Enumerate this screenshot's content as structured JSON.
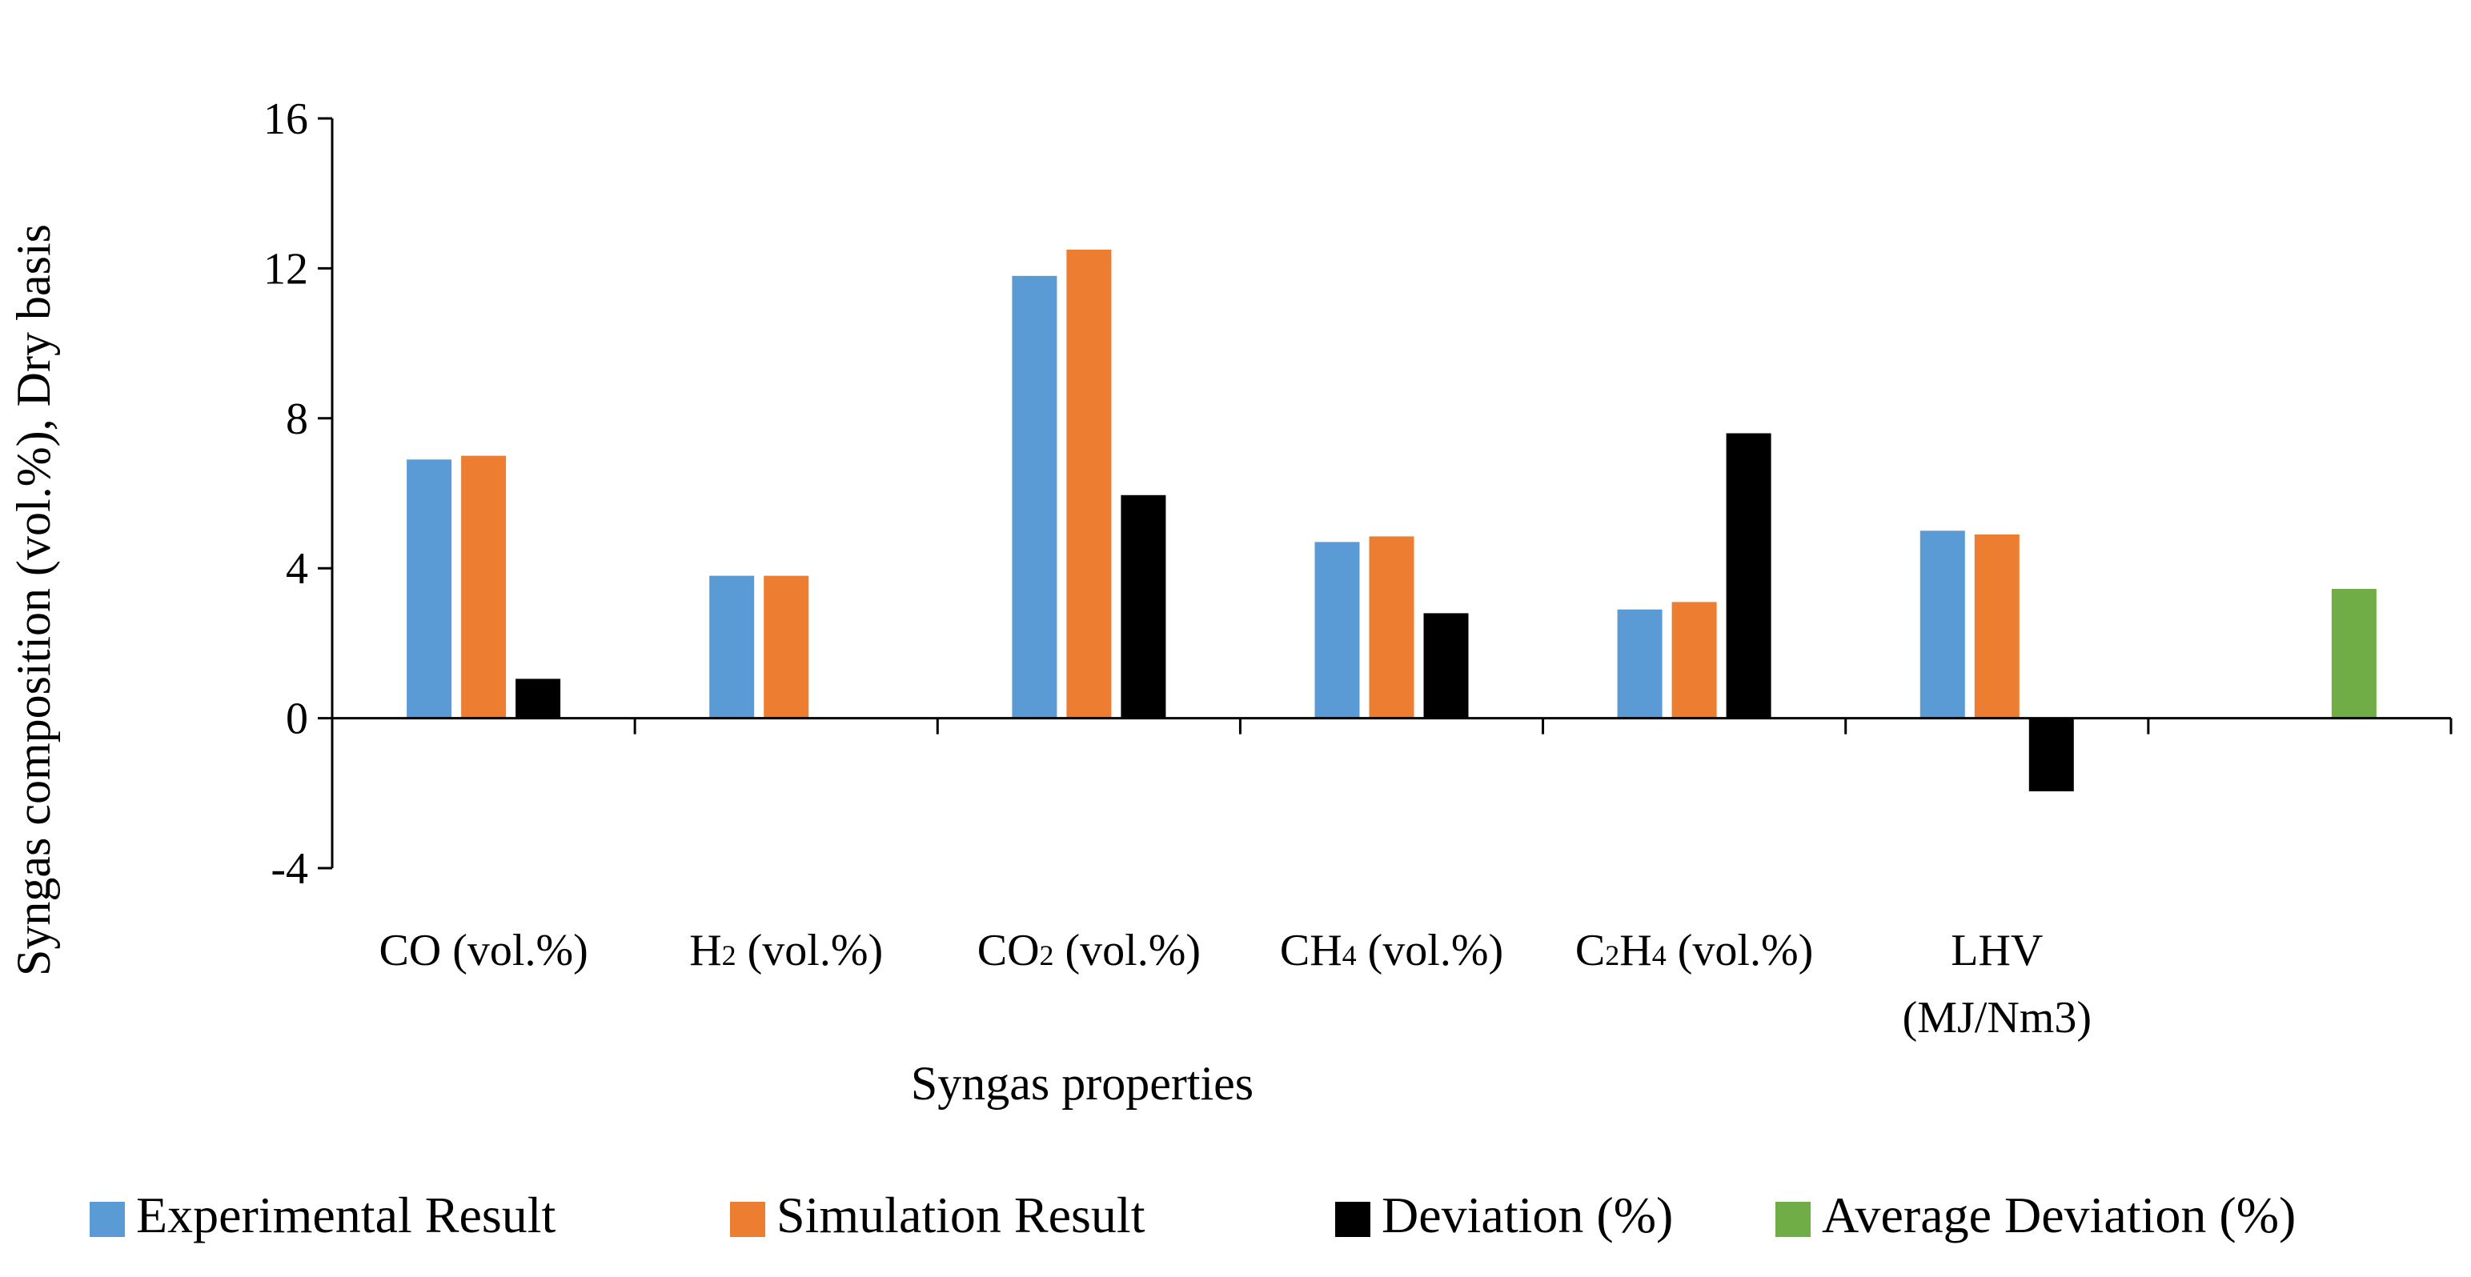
{
  "chart_data": {
    "type": "bar",
    "title": "",
    "xlabel": "Syngas properties",
    "ylabel": "Syngas composition (vol.%), Dry basis",
    "ylim": [
      -4,
      16
    ],
    "yticks": [
      -4,
      0,
      4,
      8,
      12,
      16
    ],
    "grid": false,
    "legend_position": "bottom",
    "categories": [
      {
        "base": "CO",
        "sub": "",
        "rest": "",
        "suffix": " (vol.%)",
        "line2": ""
      },
      {
        "base": "H",
        "sub": "2",
        "rest": "",
        "suffix": " (vol.%)",
        "line2": ""
      },
      {
        "base": "CO",
        "sub": "2",
        "rest": "",
        "suffix": " (vol.%)",
        "line2": ""
      },
      {
        "base": "CH",
        "sub": "4",
        "rest": "",
        "suffix": " (vol.%)",
        "line2": ""
      },
      {
        "base": "C",
        "sub": "2",
        "rest": "H",
        "sub2": "4",
        "suffix": " (vol.%)",
        "line2": ""
      },
      {
        "base": "LHV",
        "sub": "",
        "rest": "",
        "suffix": "",
        "line2": "(MJ/Nm3)"
      },
      {
        "base": "",
        "sub": "",
        "rest": "",
        "suffix": "",
        "line2": ""
      }
    ],
    "series": [
      {
        "name": "Experimental Result",
        "color": "#5B9BD5",
        "values": [
          6.9,
          3.8,
          11.8,
          4.7,
          2.9,
          5.0,
          null
        ]
      },
      {
        "name": "Simulation Result",
        "color": "#ED7D31",
        "values": [
          7.0,
          3.8,
          12.5,
          4.85,
          3.1,
          4.9,
          null
        ]
      },
      {
        "name": "Deviation (%)",
        "color": "#000000",
        "values": [
          1.05,
          null,
          5.95,
          2.8,
          7.6,
          -1.95,
          null
        ]
      },
      {
        "name": "Average Deviation (%)",
        "color": "#70AD47",
        "values": [
          null,
          null,
          null,
          null,
          null,
          null,
          3.45
        ]
      }
    ]
  }
}
